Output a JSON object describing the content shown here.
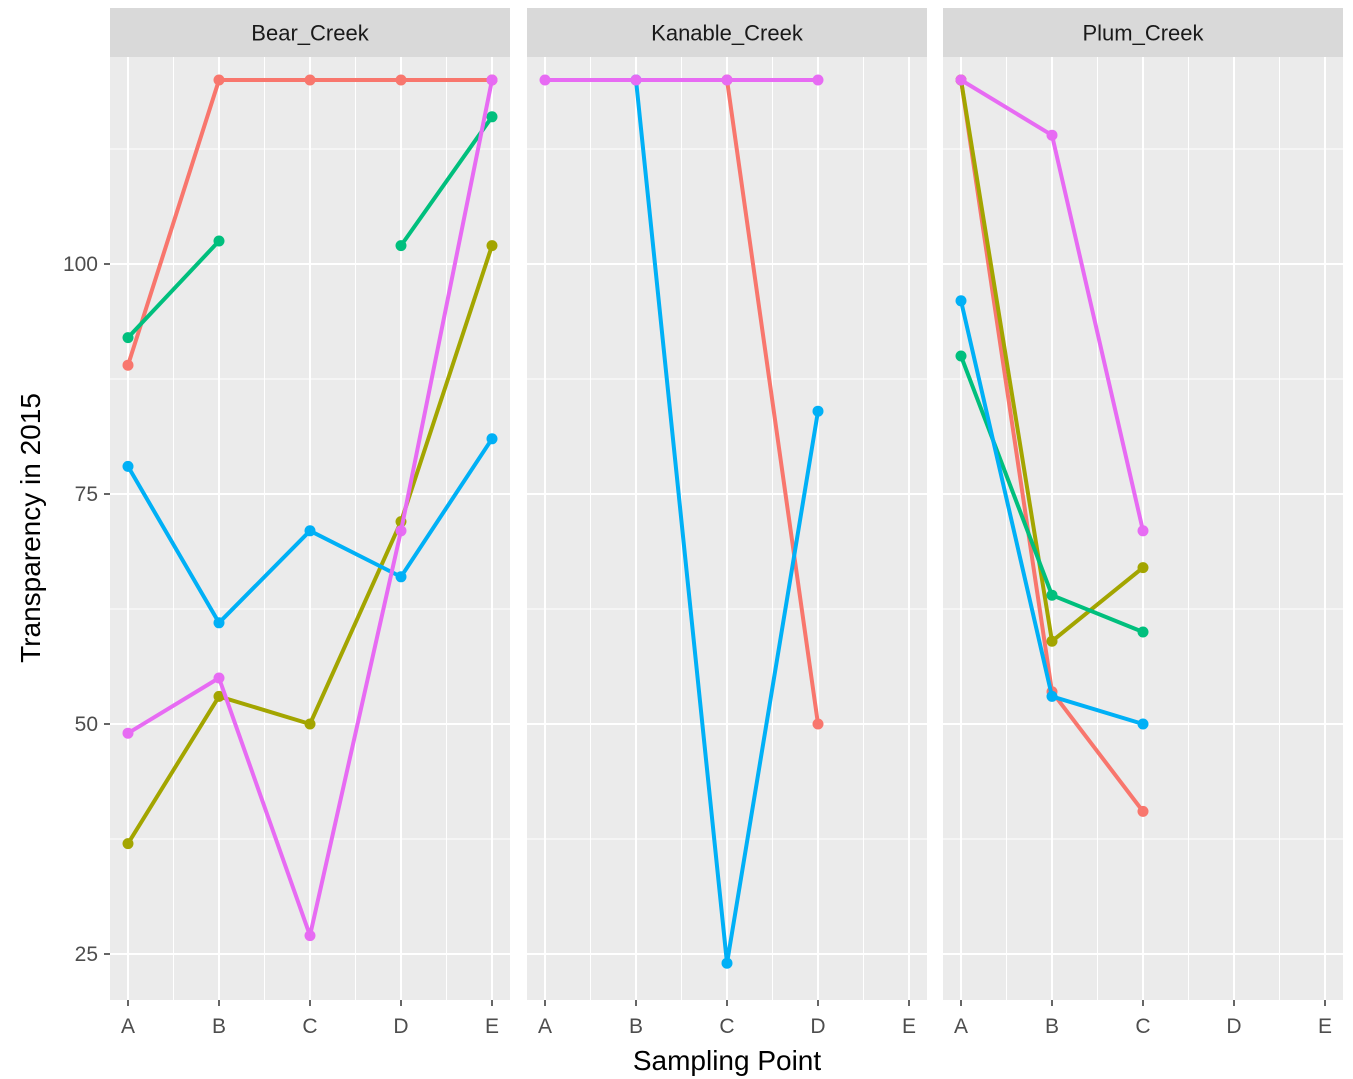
{
  "chart_data": {
    "type": "line",
    "xlabel": "Sampling Point",
    "ylabel": "Transparency in 2015",
    "x_categories": [
      "A",
      "B",
      "C",
      "D",
      "E"
    ],
    "y_ticks": [
      25,
      50,
      75,
      100
    ],
    "ylim": [
      20,
      122.5
    ],
    "grid": true,
    "legend": "none",
    "panels": [
      {
        "name": "Bear_Creek",
        "series": [
          {
            "color": "#F8766D",
            "values": [
              89,
              120,
              120,
              120,
              120
            ]
          },
          {
            "color": "#A3A500",
            "values": [
              37,
              53,
              50,
              72,
              102
            ]
          },
          {
            "color": "#00BF7D",
            "values": [
              92,
              102.5,
              null,
              102,
              116
            ]
          },
          {
            "color": "#00B0F6",
            "values": [
              78,
              61,
              71,
              66,
              81
            ]
          },
          {
            "color": "#E76BF3",
            "values": [
              49,
              55,
              27,
              71,
              120
            ]
          }
        ]
      },
      {
        "name": "Kanable_Creek",
        "series": [
          {
            "color": "#F8766D",
            "values": [
              null,
              null,
              120,
              50,
              null
            ]
          },
          {
            "color": "#00B0F6",
            "values": [
              null,
              120,
              24,
              84,
              null
            ]
          },
          {
            "color": "#E76BF3",
            "values": [
              120,
              120,
              120,
              120,
              null
            ]
          }
        ]
      },
      {
        "name": "Plum_Creek",
        "series": [
          {
            "color": "#F8766D",
            "values": [
              120,
              53.5,
              40.5,
              null,
              null
            ]
          },
          {
            "color": "#A3A500",
            "values": [
              120,
              59,
              67,
              null,
              null
            ]
          },
          {
            "color": "#00BF7D",
            "values": [
              90,
              64,
              60,
              null,
              null
            ]
          },
          {
            "color": "#00B0F6",
            "values": [
              96,
              53,
              50,
              null,
              null
            ]
          },
          {
            "color": "#E76BF3",
            "values": [
              120,
              114,
              71,
              null,
              null
            ]
          }
        ]
      }
    ]
  },
  "style": {
    "panel_bg": "#EBEBEB",
    "strip_bg": "#D9D9D9",
    "grid_color": "#FFFFFF"
  }
}
